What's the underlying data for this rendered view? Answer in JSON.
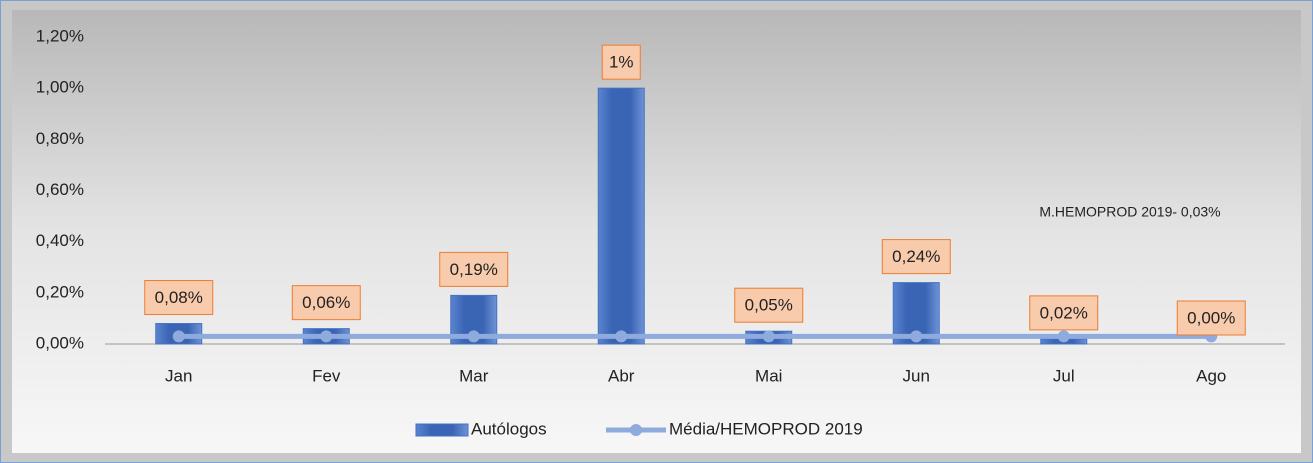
{
  "chart_data": {
    "type": "bar",
    "categories": [
      "Jan",
      "Fev",
      "Mar",
      "Abr",
      "Mai",
      "Jun",
      "Jul",
      "Ago"
    ],
    "series": [
      {
        "name": "Autólogos",
        "type": "bar",
        "color": "#4472c4",
        "values": [
          0.08,
          0.06,
          0.19,
          1,
          0.05,
          0.24,
          0.02,
          0
        ],
        "value_labels": [
          "0,08%",
          "0,06%",
          "0,19%",
          "1%",
          "0,05%",
          "0,24%",
          "0,02%",
          "0,00%"
        ]
      },
      {
        "name": "Média/HEMOPROD 2019",
        "type": "line",
        "color": "#8faadc",
        "values": [
          0.03,
          0.03,
          0.03,
          0.03,
          0.03,
          0.03,
          0.03,
          0.03
        ]
      }
    ],
    "ylim": [
      0,
      1.2
    ],
    "yticks": [
      {
        "value": 0,
        "label": "0,00%"
      },
      {
        "value": 0.2,
        "label": "0,20%"
      },
      {
        "value": 0.4,
        "label": "0,40%"
      },
      {
        "value": 0.6,
        "label": "0,60%"
      },
      {
        "value": 0.8,
        "label": "0,80%"
      },
      {
        "value": 1,
        "label": "1,00%"
      },
      {
        "value": 1.2,
        "label": "1,20%"
      }
    ],
    "annotation": "M.HEMOPROD 2019- 0,03%",
    "grid": true,
    "legend": "bottom"
  }
}
